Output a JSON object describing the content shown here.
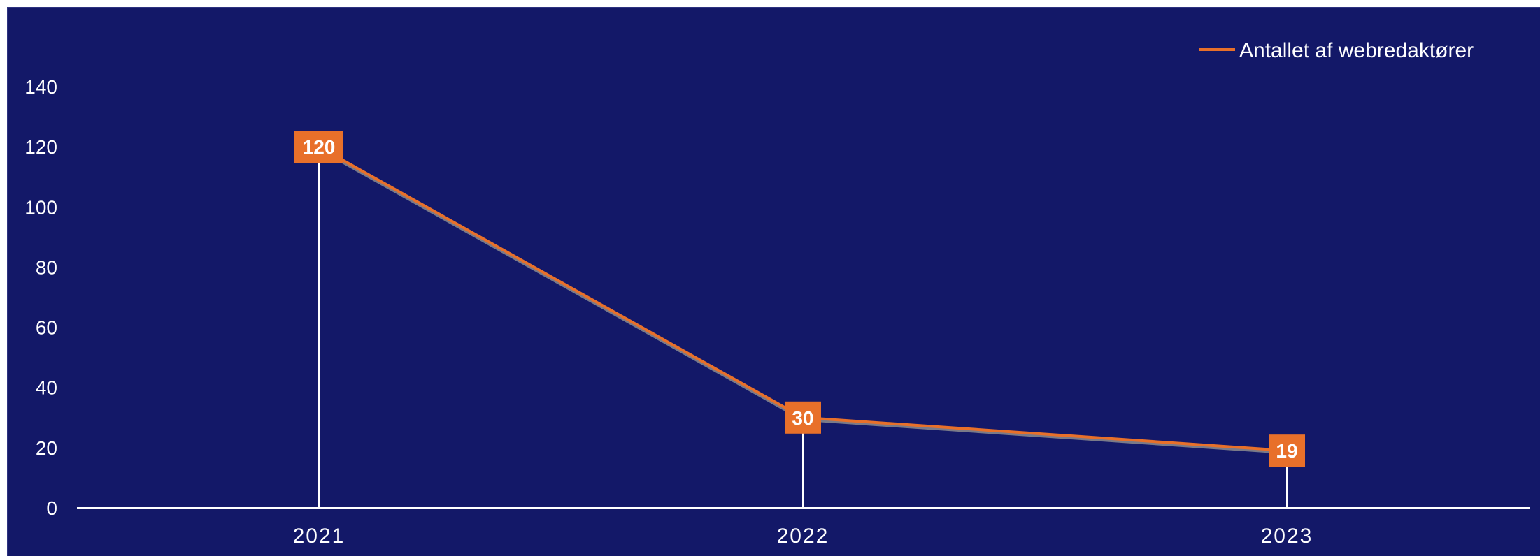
{
  "chart_data": {
    "type": "line",
    "title": "",
    "xlabel": "",
    "ylabel": "",
    "categories": [
      "2021",
      "2022",
      "2023"
    ],
    "series": [
      {
        "name": "Antallet af webredaktører",
        "values": [
          120,
          30,
          19
        ],
        "color": "#e8702a"
      }
    ],
    "ylim": [
      0,
      140
    ],
    "yticks": [
      0,
      20,
      40,
      60,
      80,
      100,
      120,
      140
    ],
    "grid": false,
    "legend": "top-right",
    "drop_lines": true,
    "data_labels": true
  },
  "colors": {
    "background": "#131868",
    "axis": "#ffffff",
    "series": "#e8702a",
    "text": "#ffffff"
  }
}
